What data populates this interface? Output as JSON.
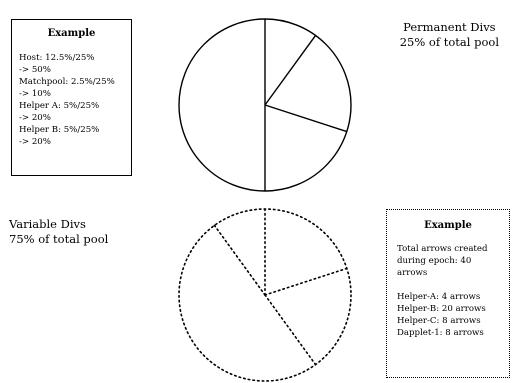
{
  "permanent_divs": {
    "title": "Permanent Divs",
    "subtitle": "25% of total pool",
    "example": {
      "title": "Example",
      "lines": [
        "Host: 12.5%/25%",
        "-> 50%",
        "Matchpool: 2.5%/25%",
        "-> 10%",
        "Helper A: 5%/25%",
        "-> 20%",
        "Helper B: 5%/25%",
        "-> 20%"
      ]
    },
    "pie_shares": [
      50,
      10,
      20,
      20
    ],
    "pie_style": "solid"
  },
  "variable_divs": {
    "title": "Variable Divs",
    "subtitle": "75% of total pool",
    "example": {
      "title": "Example",
      "intro": [
        "Total arrows created",
        "during epoch:  40",
        "arrows"
      ],
      "lines": [
        "Helper-A: 4 arrows",
        "Helper-B: 20 arrows",
        "Helper-C: 8 arrows",
        "Dapplet-1: 8 arrows"
      ]
    },
    "pie_shares": [
      4,
      20,
      8,
      8
    ],
    "pie_style": "dotted"
  },
  "colors": {
    "stroke": "#000000",
    "background": "#ffffff"
  }
}
